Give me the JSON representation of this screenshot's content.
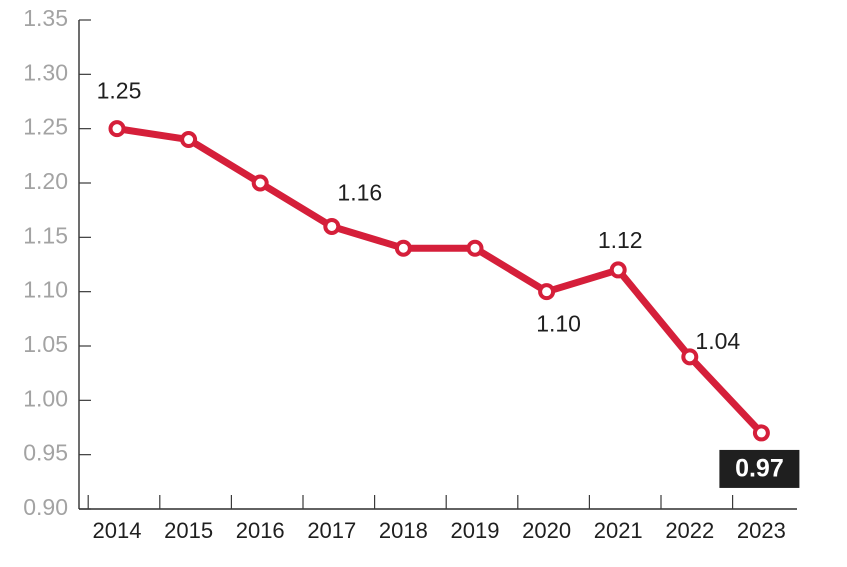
{
  "chart_data": {
    "type": "line",
    "x": [
      "2014",
      "2015",
      "2016",
      "2017",
      "2018",
      "2019",
      "2020",
      "2021",
      "2022",
      "2023"
    ],
    "series": [
      {
        "values": [
          1.25,
          1.24,
          1.2,
          1.16,
          1.14,
          1.14,
          1.1,
          1.12,
          1.04,
          0.97
        ],
        "color": "#d51f3a"
      }
    ],
    "ylim": [
      0.9,
      1.35
    ],
    "y_ticks": [
      "0.90",
      "0.95",
      "1.00",
      "1.05",
      "1.10",
      "1.15",
      "1.20",
      "1.25",
      "1.30",
      "1.35"
    ],
    "data_labels": [
      {
        "index": 0,
        "text": "1.25",
        "placement": "above-left"
      },
      {
        "index": 3,
        "text": "1.16",
        "placement": "above-right"
      },
      {
        "index": 6,
        "text": "1.10",
        "placement": "below"
      },
      {
        "index": 7,
        "text": "1.12",
        "placement": "above"
      },
      {
        "index": 8,
        "text": "1.04",
        "placement": "right"
      },
      {
        "index": 9,
        "text": "0.97",
        "placement": "below",
        "highlight": true
      }
    ],
    "grid": false,
    "legend": "none",
    "title": "",
    "xlabel": "",
    "ylabel": ""
  }
}
